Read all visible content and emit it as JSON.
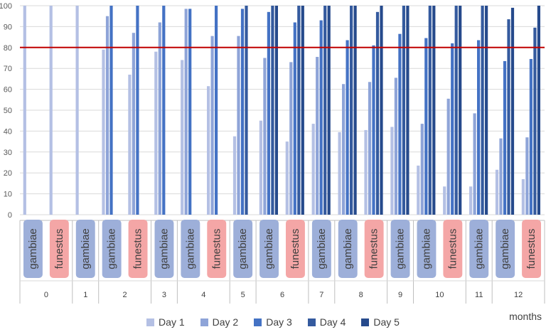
{
  "chart_data": {
    "type": "bar",
    "xlabel": "months",
    "ylim": [
      0,
      100
    ],
    "y_ticks": [
      0,
      10,
      20,
      30,
      40,
      50,
      60,
      70,
      80,
      90,
      100
    ],
    "reference_line": {
      "value": 80,
      "color": "#c00000"
    },
    "grid": true,
    "legend_position": "bottom",
    "series": [
      {
        "name": "Day 1",
        "color": "#b4c0e4"
      },
      {
        "name": "Day 2",
        "color": "#8ea4d8"
      },
      {
        "name": "Day 3",
        "color": "#4472c4"
      },
      {
        "name": "Day 4",
        "color": "#345a9e"
      },
      {
        "name": "Day 5",
        "color": "#264a8c"
      }
    ],
    "species_colors": {
      "gambiae": "#9dafd9",
      "funestus": "#f4a6a6"
    },
    "groups": [
      {
        "month": "0",
        "bars": [
          {
            "species": "gambiae",
            "values": [
              100,
              null,
              null,
              null,
              null
            ]
          },
          {
            "species": "funestus",
            "values": [
              100,
              null,
              null,
              null,
              null
            ]
          }
        ]
      },
      {
        "month": "1",
        "bars": [
          {
            "species": "gambiae",
            "values": [
              100,
              null,
              null,
              null,
              null
            ]
          }
        ]
      },
      {
        "month": "2",
        "bars": [
          {
            "species": "gambiae",
            "values": [
              79,
              95,
              100,
              null,
              null
            ]
          },
          {
            "species": "funestus",
            "values": [
              67,
              87,
              100,
              null,
              null
            ]
          }
        ]
      },
      {
        "month": "3",
        "bars": [
          {
            "species": "gambiae",
            "values": [
              78,
              92,
              100,
              null,
              null
            ]
          }
        ]
      },
      {
        "month": "4",
        "bars": [
          {
            "species": "gambiae",
            "values": [
              74,
              98.5,
              98.5,
              null,
              null
            ]
          },
          {
            "species": "funestus",
            "values": [
              61.5,
              85.5,
              100,
              null,
              null
            ]
          }
        ]
      },
      {
        "month": "5",
        "bars": [
          {
            "species": "gambiae",
            "values": [
              37.5,
              85.5,
              98.5,
              100,
              null
            ]
          }
        ]
      },
      {
        "month": "6",
        "bars": [
          {
            "species": "gambiae",
            "values": [
              45,
              75,
              97,
              100,
              100
            ]
          },
          {
            "species": "funestus",
            "values": [
              35,
              73,
              92,
              100,
              100
            ]
          }
        ]
      },
      {
        "month": "7",
        "bars": [
          {
            "species": "gambiae",
            "values": [
              43.5,
              75.5,
              93,
              100,
              100
            ]
          }
        ]
      },
      {
        "month": "8",
        "bars": [
          {
            "species": "gambiae",
            "values": [
              39.5,
              62.5,
              83.5,
              100,
              100
            ]
          },
          {
            "species": "funestus",
            "values": [
              40.5,
              63.5,
              81,
              97,
              100
            ]
          }
        ]
      },
      {
        "month": "9",
        "bars": [
          {
            "species": "gambiae",
            "values": [
              42,
              65.5,
              86.5,
              100,
              100
            ]
          }
        ]
      },
      {
        "month": "10",
        "bars": [
          {
            "species": "gambiae",
            "values": [
              23.5,
              43.5,
              84.5,
              100,
              100
            ]
          },
          {
            "species": "funestus",
            "values": [
              13.5,
              55.5,
              82,
              100,
              100
            ]
          }
        ]
      },
      {
        "month": "11",
        "bars": [
          {
            "species": "gambiae",
            "values": [
              13.5,
              48.5,
              83.5,
              100,
              100
            ]
          }
        ]
      },
      {
        "month": "12",
        "bars": [
          {
            "species": "gambiae",
            "values": [
              21.5,
              36.5,
              73.5,
              93.5,
              99
            ]
          },
          {
            "species": "funestus",
            "values": [
              17,
              37,
              74.5,
              89.5,
              100
            ]
          }
        ]
      }
    ]
  }
}
